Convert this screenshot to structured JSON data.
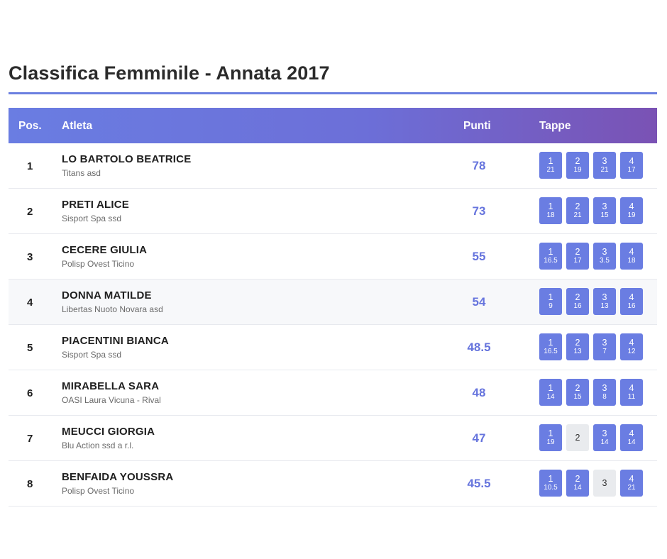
{
  "page": {
    "title": "Classifica Femminile - Annata 2017"
  },
  "table": {
    "headers": {
      "pos": "Pos.",
      "athlete": "Atleta",
      "points": "Punti",
      "stages": "Tappe"
    },
    "rows": [
      {
        "pos": "1",
        "name": "LO BARTOLO BEATRICE",
        "club": "Titans asd",
        "points": "78",
        "stages": [
          {
            "n": "1",
            "p": "21"
          },
          {
            "n": "2",
            "p": "19"
          },
          {
            "n": "3",
            "p": "21"
          },
          {
            "n": "4",
            "p": "17"
          }
        ]
      },
      {
        "pos": "2",
        "name": "PRETI ALICE",
        "club": "Sisport Spa ssd",
        "points": "73",
        "stages": [
          {
            "n": "1",
            "p": "18"
          },
          {
            "n": "2",
            "p": "21"
          },
          {
            "n": "3",
            "p": "15"
          },
          {
            "n": "4",
            "p": "19"
          }
        ]
      },
      {
        "pos": "3",
        "name": "CECERE GIULIA",
        "club": "Polisp Ovest Ticino",
        "points": "55",
        "stages": [
          {
            "n": "1",
            "p": "16.5"
          },
          {
            "n": "2",
            "p": "17"
          },
          {
            "n": "3",
            "p": "3.5"
          },
          {
            "n": "4",
            "p": "18"
          }
        ]
      },
      {
        "pos": "4",
        "name": "DONNA MATILDE",
        "club": "Libertas Nuoto Novara asd",
        "points": "54",
        "stages": [
          {
            "n": "1",
            "p": "9"
          },
          {
            "n": "2",
            "p": "16"
          },
          {
            "n": "3",
            "p": "13"
          },
          {
            "n": "4",
            "p": "16"
          }
        ]
      },
      {
        "pos": "5",
        "name": "PIACENTINI BIANCA",
        "club": "Sisport Spa ssd",
        "points": "48.5",
        "stages": [
          {
            "n": "1",
            "p": "16.5"
          },
          {
            "n": "2",
            "p": "13"
          },
          {
            "n": "3",
            "p": "7"
          },
          {
            "n": "4",
            "p": "12"
          }
        ]
      },
      {
        "pos": "6",
        "name": "MIRABELLA SARA",
        "club": "OASI Laura Vicuna - Rival",
        "points": "48",
        "stages": [
          {
            "n": "1",
            "p": "14"
          },
          {
            "n": "2",
            "p": "15"
          },
          {
            "n": "3",
            "p": "8"
          },
          {
            "n": "4",
            "p": "11"
          }
        ]
      },
      {
        "pos": "7",
        "name": "MEUCCI GIORGIA",
        "club": "Blu Action ssd a r.l.",
        "points": "47",
        "stages": [
          {
            "n": "1",
            "p": "19"
          },
          {
            "n": "2",
            "p": null
          },
          {
            "n": "3",
            "p": "14"
          },
          {
            "n": "4",
            "p": "14"
          }
        ]
      },
      {
        "pos": "8",
        "name": "BENFAIDA YOUSSRA",
        "club": "Polisp Ovest Ticino",
        "points": "45.5",
        "stages": [
          {
            "n": "1",
            "p": "10.5"
          },
          {
            "n": "2",
            "p": "14"
          },
          {
            "n": "3",
            "p": null
          },
          {
            "n": "4",
            "p": "21"
          }
        ]
      }
    ]
  },
  "colors": {
    "accent": "#6a7de2",
    "header_gradient_end": "#7a52b4",
    "points_text": "#6674dd",
    "empty_stage": "#e9ebee"
  }
}
